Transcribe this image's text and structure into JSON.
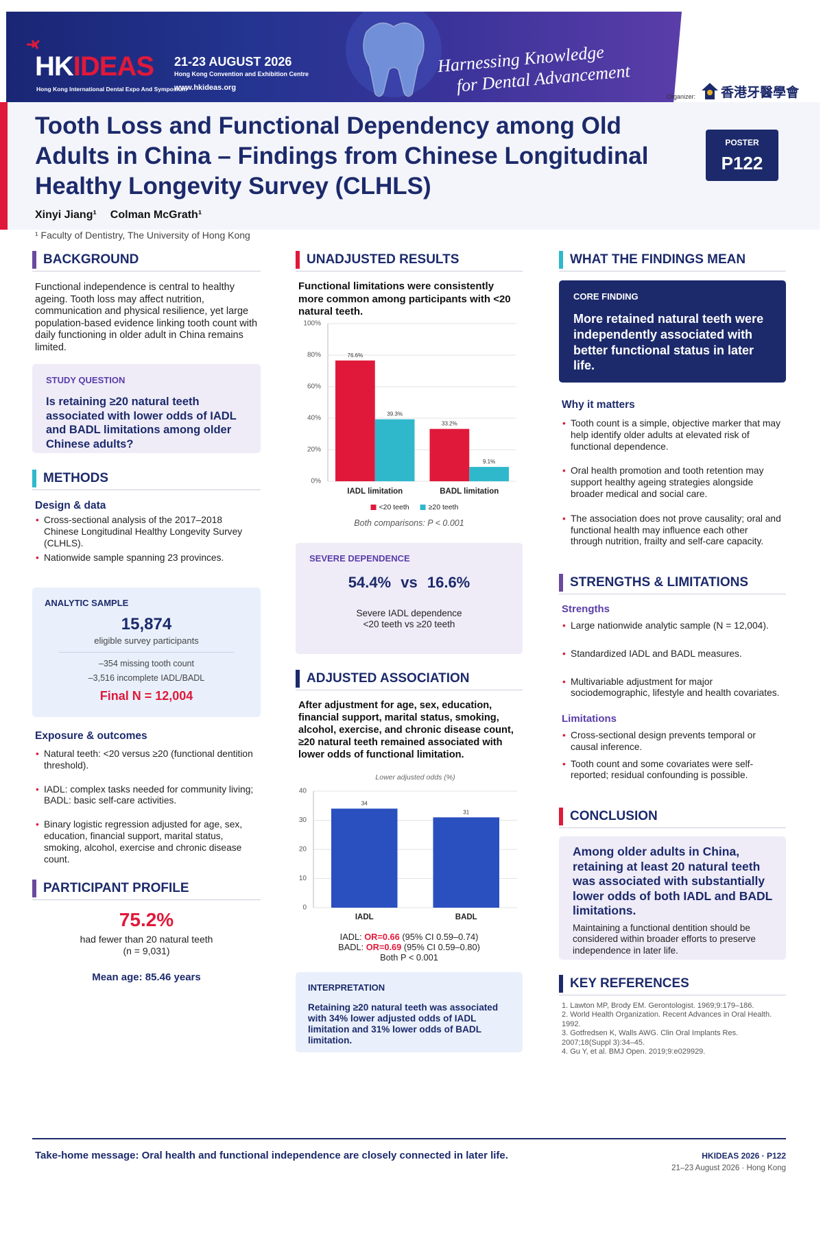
{
  "banner": {
    "logo_prefix": "HK",
    "logo_suffix": "IDEAS",
    "logo_tagline": "Hong Kong International Dental Expo And Symposium",
    "dates": "21-23 AUGUST 2026",
    "venue": "Hong Kong Convention and Exhibition Centre",
    "website": "www.hkideas.org",
    "slogan_line1": "Harnessing Knowledge",
    "slogan_line2": "for Dental Advancement",
    "organizer_label": "Organizer:",
    "organizer_name": "香港牙醫學會"
  },
  "header": {
    "title": "Tooth Loss and Functional Dependency among Old Adults in China – Findings from Chinese Longitudinal Healthy Longevity Survey (CLHLS)",
    "authors": [
      "Xinyi Jiang¹",
      "Colman McGrath¹"
    ],
    "affiliation": "¹ Faculty of Dentistry, The University of Hong Kong",
    "badge_label": "POSTER",
    "badge_id": "P122"
  },
  "background": {
    "heading": "BACKGROUND",
    "text": "Functional independence is central to healthy ageing. Tooth loss may affect nutrition, communication and physical resilience, yet large population-based evidence linking tooth count with daily functioning in older adult in China remains limited.",
    "question_label": "STUDY QUESTION",
    "question": "Is retaining ≥20 natural teeth associated with lower odds of IADL and BADL limitations among older Chinese adults?"
  },
  "methods": {
    "heading": "METHODS",
    "design_heading": "Design & data",
    "design_items": [
      "Cross-sectional analysis of the 2017–2018 Chinese Longitudinal Healthy Longevity Survey (CLHLS).",
      "Nationwide sample spanning 23 provinces."
    ],
    "sample_label": "ANALYTIC SAMPLE",
    "sample_total": "15,874",
    "sample_total_caption": "eligible survey participants",
    "exclusions": [
      "–354 missing tooth count",
      "–3,516 incomplete IADL/BADL"
    ],
    "final": "Final N = 12,004",
    "exposure_heading": "Exposure & outcomes",
    "exposure_items": [
      "Natural teeth: <20 versus ≥20 (functional dentition threshold).",
      "IADL: complex tasks needed for community living; BADL: basic self-care activities.",
      "Binary logistic regression adjusted for age, sex, education, financial support, marital status, smoking, alcohol, exercise and chronic disease count."
    ]
  },
  "participant_profile": {
    "heading": "PARTICIPANT PROFILE",
    "percent": "75.2%",
    "caption": "had fewer than 20 natural teeth",
    "n": "(n = 9,031)",
    "mean_age": "Mean age: 85.46 years"
  },
  "unadjusted_results": {
    "heading": "UNADJUSTED RESULTS",
    "lead": "Functional limitations were consistently more common among participants with <20 natural teeth.",
    "chart": {
      "type": "bar",
      "categories": [
        "IADL limitation",
        "BADL limitation"
      ],
      "series": [
        {
          "name": "<20 teeth",
          "color": "#e0193a",
          "values": [
            76.6,
            33.2
          ],
          "value_labels": [
            "76.6%",
            "33.2%"
          ]
        },
        {
          "name": "≥20 teeth",
          "color": "#2fb8cc",
          "values": [
            39.3,
            9.1
          ],
          "value_labels": [
            "39.3%",
            "9.1%"
          ]
        }
      ],
      "ylim": [
        0,
        100
      ],
      "yticks": [
        {
          "value": 0,
          "label": "0%"
        },
        {
          "value": 20,
          "label": "20%"
        },
        {
          "value": 40,
          "label": "40%"
        },
        {
          "value": 60,
          "label": "60%"
        },
        {
          "value": 80,
          "label": "80%"
        },
        {
          "value": 100,
          "label": "100%"
        }
      ],
      "grid": true
    },
    "note": "Both comparisons: P < 0.001",
    "severe_label": "SEVERE DEPENDENCE",
    "severe_left": "54.4%",
    "severe_vs": "vs",
    "severe_right": "16.6%",
    "severe_caption_line1": "Severe IADL dependence",
    "severe_caption_line2": "<20 teeth vs ≥20 teeth"
  },
  "adjusted_association": {
    "heading": "ADJUSTED ASSOCIATION",
    "lead": "After adjustment for age, sex, education, financial support, marital status, smoking, alcohol, exercise, and chronic disease count, ≥20 natural teeth remained associated with lower odds of functional limitation.",
    "chart": {
      "type": "bar",
      "title": "Lower adjusted odds (%)",
      "categories": [
        "IADL",
        "BADL"
      ],
      "values": [
        34,
        31
      ],
      "color": "#2a4fbf",
      "ylim": [
        0,
        40
      ],
      "yticks": [
        0,
        10,
        20,
        30,
        40
      ],
      "grid": true
    },
    "or_lines": [
      {
        "prefix": "IADL:",
        "or": "OR=0.66",
        "ci": "(95% CI 0.59–0.74)"
      },
      {
        "prefix": "BADL:",
        "or": "OR=0.69",
        "ci": "(95% CI 0.59–0.80)"
      }
    ],
    "p_note": "Both P < 0.001",
    "interpretation_label": "INTERPRETATION",
    "interpretation": "Retaining ≥20 natural teeth was associated with  34% lower adjusted odds of IADL limitation and 31% lower odds of BADL limitation."
  },
  "findings": {
    "heading": "WHAT THE FINDINGS MEAN",
    "core_label": "CORE FINDING",
    "core_text": "More retained natural teeth were independently associated with better functional status in later life.",
    "why_heading": "Why it matters",
    "why_items": [
      "Tooth count is a simple, objective marker that may help identify older adults at elevated risk of functional dependence.",
      "Oral health promotion and tooth retention may support healthy ageing strategies alongside broader medical and social care.",
      "The association does not prove causality; oral and functional health may influence each other through nutrition, frailty and self-care capacity."
    ]
  },
  "strengths_limitations": {
    "heading": "STRENGTHS & LIMITATIONS",
    "strengths_heading": "Strengths",
    "strengths": [
      "Large nationwide analytic sample (N = 12,004).",
      "Standardized IADL and BADL measures.",
      "Multivariable adjustment for major sociodemographic, lifestyle and health covariates."
    ],
    "limitations_heading": "Limitations",
    "limitations": [
      "Cross-sectional design prevents temporal or causal inference.",
      "Tooth count and some covariates were self-reported; residual confounding is possible."
    ]
  },
  "conclusion": {
    "heading": "CONCLUSION",
    "main": "Among older adults in China, retaining at least 20 natural teeth was associated with substantially lower odds of both IADL and BADL limitations.",
    "secondary": "Maintaining a functional dentition should be considered within broader efforts to preserve independence in later life."
  },
  "references": {
    "heading": "KEY REFERENCES",
    "items": [
      "1. Lawton MP, Brody EM. Gerontologist. 1969;9:179–186.",
      "2. World Health Organization. Recent Advances in Oral Health. 1992.",
      "3. Gotfredsen K, Walls AWG. Clin Oral Implants Res. 2007;18(Suppl 3):34–45.",
      "4. Gu Y, et al. BMJ Open. 2019;9:e029929."
    ]
  },
  "footer": {
    "take_home": "Take-home message: Oral health and functional independence are closely connected in later life.",
    "event": "HKIDEAS 2026 · P122",
    "event_details": "21–23 August 2026 · Hong Kong"
  }
}
